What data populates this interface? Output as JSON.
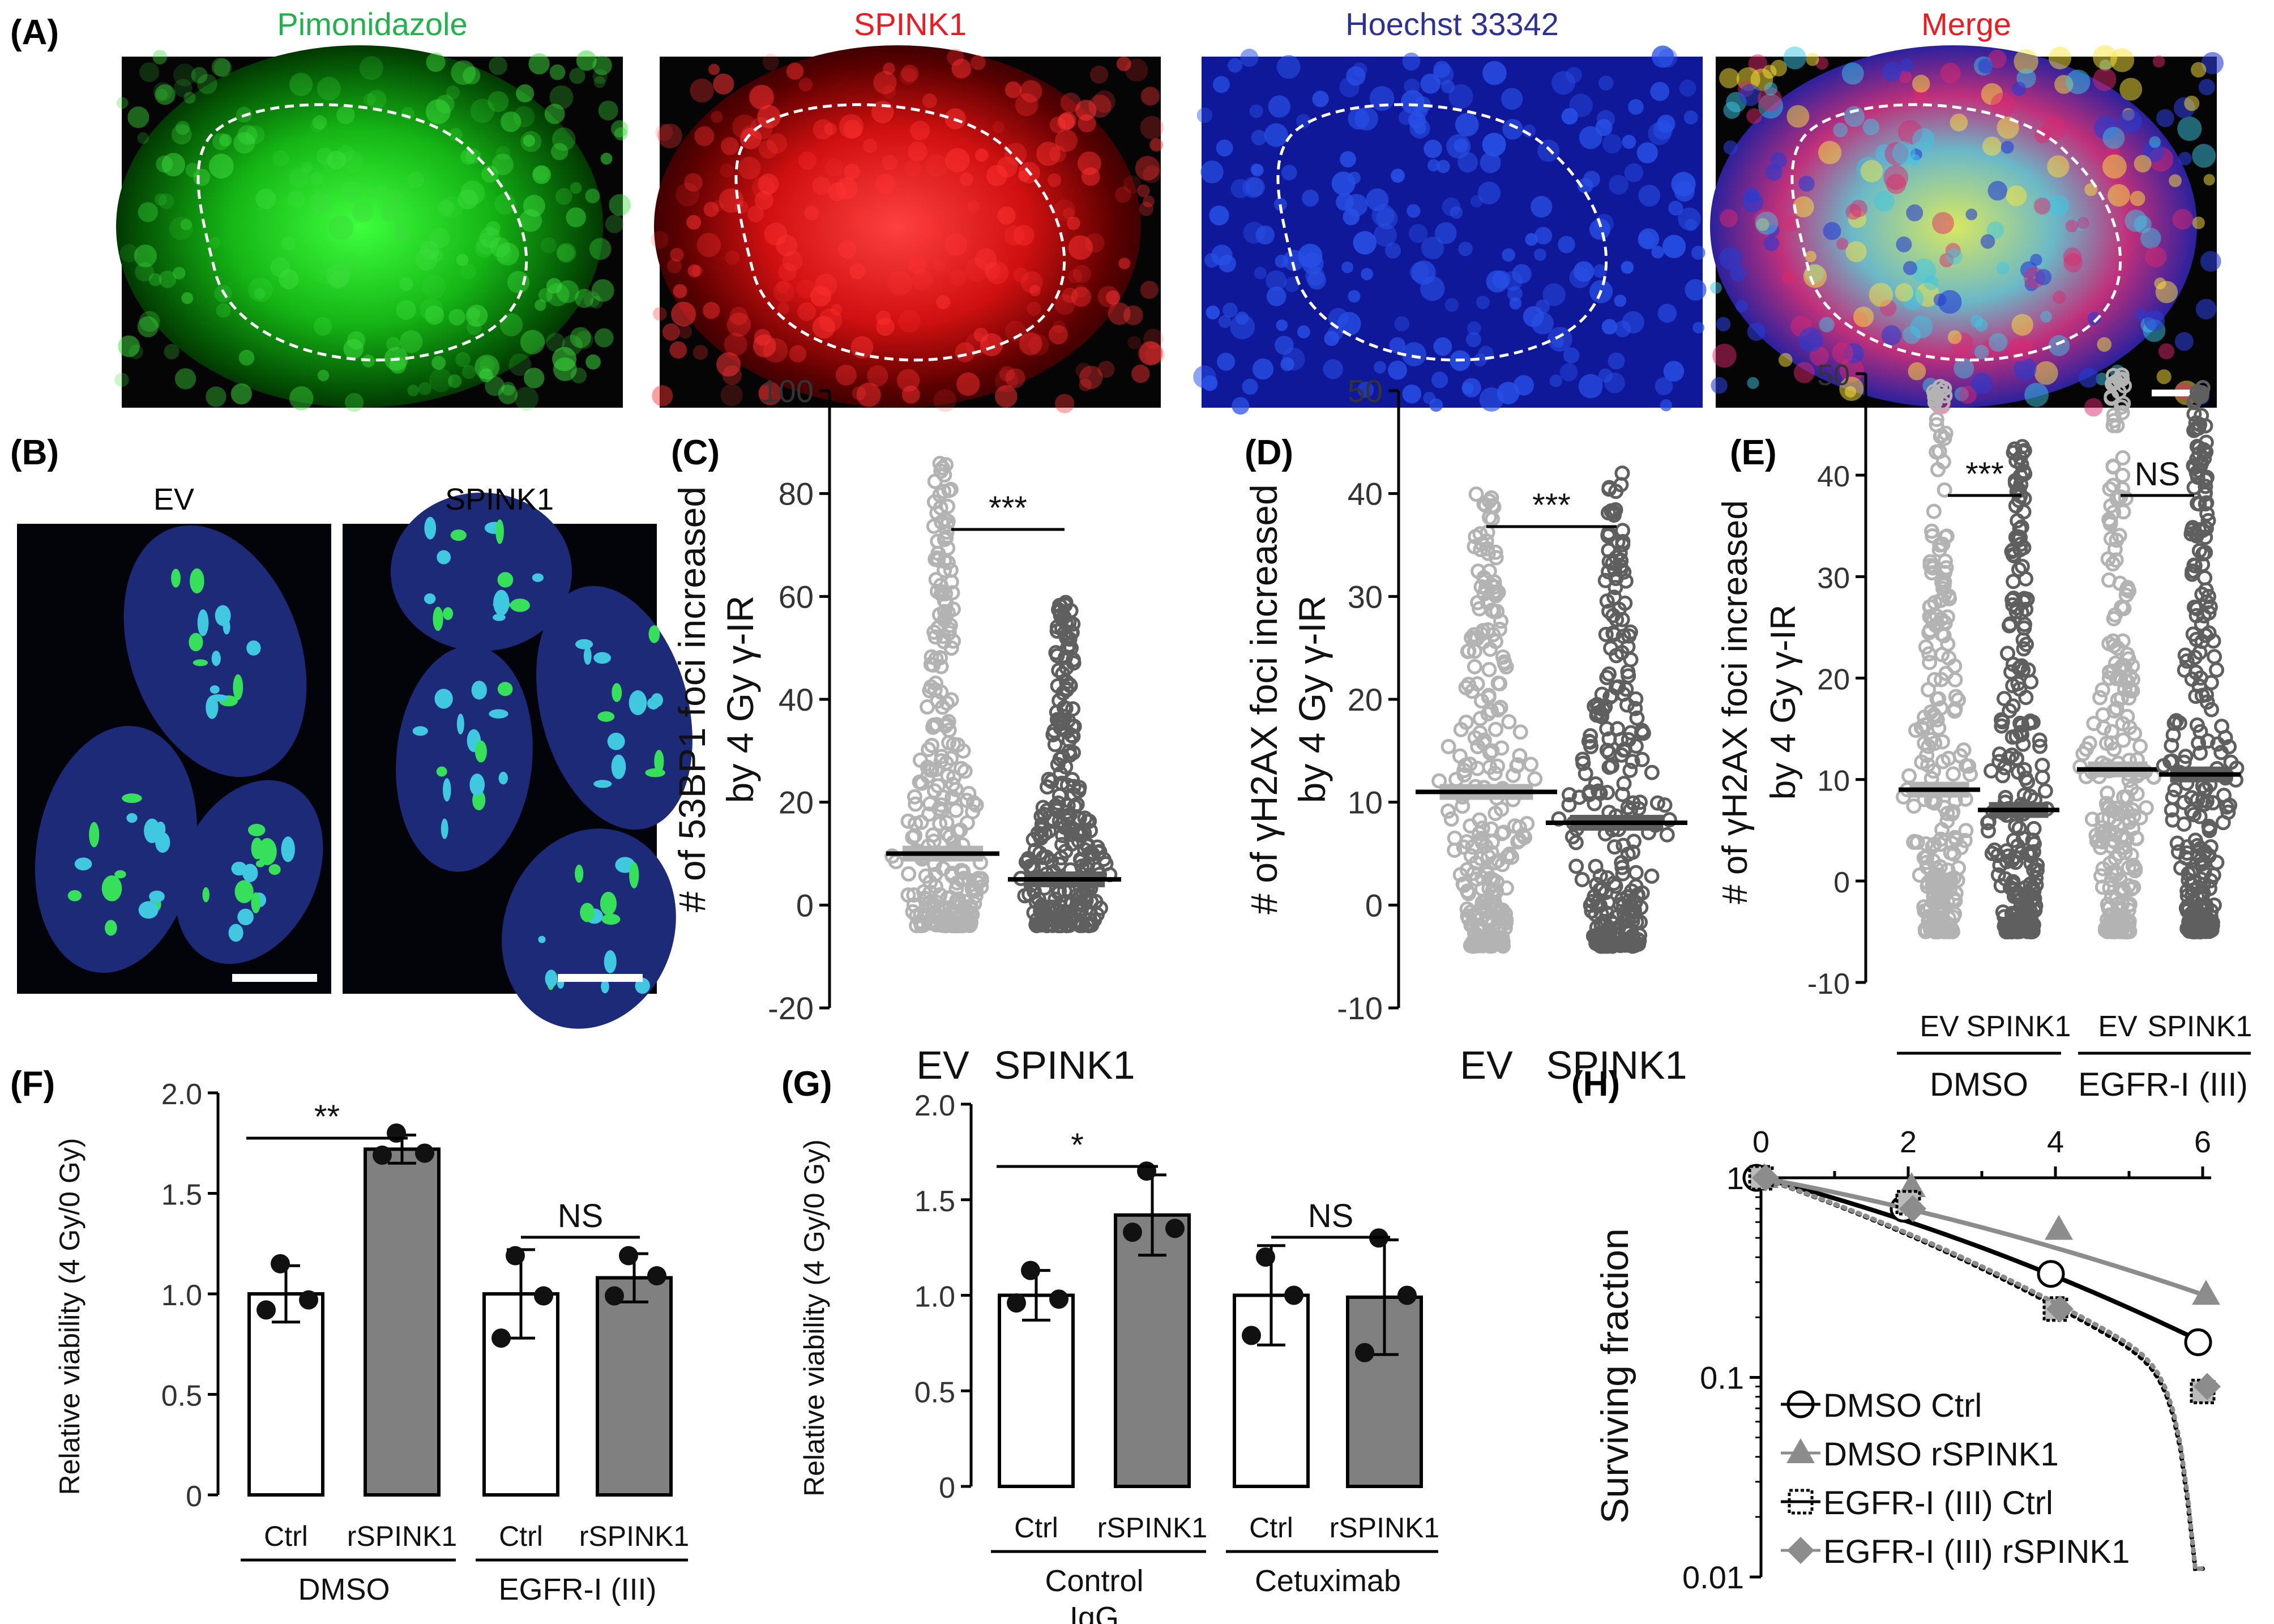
{
  "panels": {
    "A": {
      "label": "(A)",
      "channels": [
        {
          "name": "Pimonidazole",
          "color": "#22b14c"
        },
        {
          "name": "SPINK1",
          "color": "#ed1c24"
        },
        {
          "name": "Hoechst 33342",
          "color": "#2e3192"
        },
        {
          "name": "Merge",
          "color": "#ed1c24",
          "color2": "#22b14c"
        }
      ]
    },
    "B": {
      "label": "(B)",
      "images": [
        "EV",
        "SPINK1"
      ]
    }
  },
  "chart_data": [
    {
      "panel": "(C)",
      "type": "scatter",
      "ylabel_line1": "# of 53BP1 foci increased",
      "ylabel_line2": "by 4 Gy γ-IR",
      "ylim": [
        -20,
        100
      ],
      "yticks": [
        "-20",
        "0",
        "20",
        "40",
        "60",
        "80",
        "100"
      ],
      "categories": [
        "EV",
        "SPINK1"
      ],
      "means": [
        10,
        5
      ],
      "max_values": [
        86,
        59
      ],
      "significance": "***",
      "colors": [
        "#b3b3b3",
        "#5f5f5f"
      ]
    },
    {
      "panel": "(D)",
      "type": "scatter",
      "ylabel_line1": "# of γH2AX foci increased",
      "ylabel_line2": "by 4 Gy γ-IR",
      "ylim": [
        -10,
        50
      ],
      "yticks": [
        "-10",
        "0",
        "10",
        "20",
        "30",
        "40",
        "50"
      ],
      "categories": [
        "EV",
        "SPINK1"
      ],
      "means": [
        11,
        8
      ],
      "max_values": [
        40,
        42
      ],
      "significance": "***",
      "colors": [
        "#b3b3b3",
        "#5f5f5f"
      ]
    },
    {
      "panel": "(E)",
      "type": "scatter",
      "ylabel_line1": "# of γH2AX foci increased",
      "ylabel_line2": "by 4 Gy γ-IR",
      "ylim": [
        -10,
        50
      ],
      "yticks": [
        "-10",
        "0",
        "10",
        "20",
        "30",
        "40",
        "50"
      ],
      "categories": [
        "EV",
        "SPINK1",
        "EV",
        "SPINK1"
      ],
      "groups": [
        "DMSO",
        "EGFR-I (III)"
      ],
      "means": [
        9,
        7,
        11,
        10.5
      ],
      "max_values": [
        49,
        43,
        50,
        49
      ],
      "significance": [
        "***",
        "NS"
      ],
      "colors": [
        "#b3b3b3",
        "#5f5f5f",
        "#b3b3b3",
        "#5f5f5f"
      ]
    },
    {
      "panel": "(F)",
      "type": "bar",
      "ylabel": "Relative viability (4 Gy/0 Gy)",
      "ylim": [
        0,
        2.0
      ],
      "yticks": [
        "0",
        "0.5",
        "1.0",
        "1.5",
        "2.0"
      ],
      "categories": [
        "Ctrl",
        "rSPINK1",
        "Ctrl",
        "rSPINK1"
      ],
      "groups": [
        "DMSO",
        "EGFR-I (III)"
      ],
      "values": [
        1.0,
        1.72,
        1.0,
        1.08
      ],
      "errors": [
        0.14,
        0.07,
        0.22,
        0.12
      ],
      "points": [
        [
          1.15,
          0.97,
          0.92
        ],
        [
          1.8,
          1.7,
          1.69
        ],
        [
          1.19,
          0.99,
          0.78
        ],
        [
          1.19,
          1.09,
          0.99
        ]
      ],
      "fills": [
        "#ffffff",
        "#808080",
        "#ffffff",
        "#808080"
      ],
      "significance": [
        "**",
        "NS"
      ]
    },
    {
      "panel": "(G)",
      "type": "bar",
      "ylabel": "Relative viability (4 Gy/0 Gy)",
      "ylim": [
        0,
        2.0
      ],
      "yticks": [
        "0",
        "0.5",
        "1.0",
        "1.5",
        "2.0"
      ],
      "categories": [
        "Ctrl",
        "rSPINK1",
        "Ctrl",
        "rSPINK1"
      ],
      "groups": [
        "Control",
        "Cetuximab"
      ],
      "group_sublines": [
        "IgG",
        ""
      ],
      "values": [
        1.0,
        1.42,
        1.0,
        0.99
      ],
      "errors": [
        0.13,
        0.21,
        0.26,
        0.3
      ],
      "points": [
        [
          1.13,
          0.98,
          0.96
        ],
        [
          1.65,
          1.35,
          1.33
        ],
        [
          1.2,
          1.0,
          0.79
        ],
        [
          1.3,
          1.0,
          0.7
        ]
      ],
      "fills": [
        "#ffffff",
        "#808080",
        "#ffffff",
        "#808080"
      ],
      "significance": [
        "*",
        "NS"
      ]
    },
    {
      "panel": "(H)",
      "type": "line",
      "ylabel": "Surviving fraction",
      "yscale": "log",
      "ylim": [
        0.01,
        1
      ],
      "yticks": [
        "1",
        "0.1",
        "0.01"
      ],
      "x": [
        0,
        2,
        4,
        6
      ],
      "xticks": [
        "0",
        "2",
        "4",
        "6"
      ],
      "legend_position": "bottom-left",
      "series": [
        {
          "name": "DMSO Ctrl",
          "marker": "open-circle",
          "color": "#000000",
          "line": "solid",
          "values": [
            1,
            0.7,
            0.33,
            0.15
          ]
        },
        {
          "name": "DMSO rSPINK1",
          "marker": "triangle",
          "color": "#8c8c8c",
          "line": "solid",
          "values": [
            1,
            0.9,
            0.55,
            0.26
          ]
        },
        {
          "name": "EGFR-I (III) Ctrl",
          "marker": "open-square",
          "color": "#000000",
          "line": "dotted",
          "values": [
            1,
            0.75,
            0.22,
            0.085
          ]
        },
        {
          "name": "EGFR-I (III) rSPINK1",
          "marker": "diamond",
          "color": "#8c8c8c",
          "line": "dotted",
          "values": [
            1,
            0.7,
            0.22,
            0.09
          ]
        }
      ]
    }
  ]
}
